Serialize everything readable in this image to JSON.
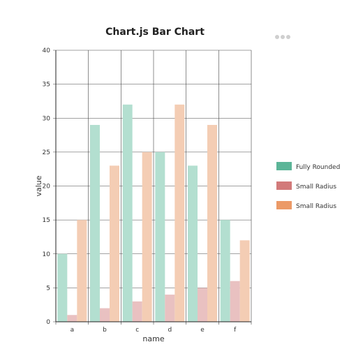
{
  "chart_data": {
    "type": "bar",
    "title": "Chart.js Bar Chart",
    "xlabel": "name",
    "ylabel": "value",
    "categories": [
      "a",
      "b",
      "c",
      "d",
      "e",
      "f"
    ],
    "ylim": [
      0,
      40
    ],
    "yticks": [
      0,
      5,
      10,
      15,
      20,
      25,
      30,
      35,
      40
    ],
    "grid": true,
    "legend_position": "right",
    "series": [
      {
        "name": "Fully Rounded",
        "values": [
          10,
          29,
          32,
          25,
          23,
          15
        ],
        "color": "#5cb598",
        "fill": "#b3dfd0"
      },
      {
        "name": "Small Radius",
        "values": [
          1,
          2,
          3,
          4,
          5,
          6
        ],
        "color": "#d27a7a",
        "fill": "#e9c1c1"
      },
      {
        "name": "Small Radius",
        "values": [
          15,
          23,
          25,
          32,
          29,
          12
        ],
        "color": "#ec9a67",
        "fill": "#f4cdb4"
      }
    ]
  }
}
